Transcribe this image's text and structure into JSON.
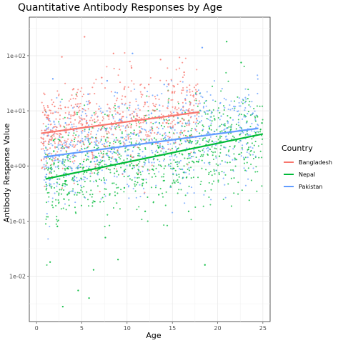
{
  "chart_data": {
    "type": "scatter",
    "title": "Quantitative Antibody Responses by Age",
    "xlabel": "Age",
    "ylabel": "Antibody Response Value",
    "xlim": [
      -0.8,
      25.8
    ],
    "ylim": [
      0.0015,
      500
    ],
    "y_scale": "log",
    "grid": true,
    "x_ticks": [
      {
        "value": 0,
        "label": "0"
      },
      {
        "value": 5,
        "label": "5"
      },
      {
        "value": 10,
        "label": "10"
      },
      {
        "value": 15,
        "label": "15"
      },
      {
        "value": 20,
        "label": "20"
      },
      {
        "value": 25,
        "label": "25"
      }
    ],
    "y_ticks": [
      {
        "value": 0.01,
        "label": "1e-02"
      },
      {
        "value": 0.1,
        "label": "1e-01"
      },
      {
        "value": 1,
        "label": "1e+00"
      },
      {
        "value": 10,
        "label": "1e+01"
      },
      {
        "value": 100,
        "label": "1e+02"
      }
    ],
    "legend": {
      "title": "Country",
      "placement": "right"
    },
    "series": [
      {
        "name": "Bangladesh",
        "color": "#F8766D",
        "x_range": [
          0.5,
          18
        ],
        "trend": {
          "x": [
            0.5,
            18
          ],
          "y": [
            3.9,
            9.5
          ]
        },
        "points": [
          [
            1.2,
            3.5
          ],
          [
            2.0,
            12.0
          ],
          [
            2.8,
            95.0
          ],
          [
            3.5,
            2.2
          ],
          [
            4.1,
            25.0
          ],
          [
            4.8,
            6.5
          ],
          [
            5.3,
            220.0
          ],
          [
            5.9,
            14.0
          ],
          [
            6.6,
            3.2
          ],
          [
            7.2,
            40.0
          ],
          [
            7.9,
            8.0
          ],
          [
            8.5,
            110.0
          ],
          [
            9.1,
            5.5
          ],
          [
            9.8,
            18.0
          ],
          [
            10.5,
            60.0
          ],
          [
            11.1,
            7.0
          ],
          [
            11.8,
            3.0
          ],
          [
            12.4,
            30.0
          ],
          [
            13.1,
            12.0
          ],
          [
            13.7,
            85.0
          ],
          [
            14.4,
            6.0
          ],
          [
            15.0,
            22.0
          ],
          [
            15.6,
            9.0
          ],
          [
            16.3,
            50.0
          ],
          [
            17.0,
            14.0
          ],
          [
            17.6,
            4.5
          ]
        ]
      },
      {
        "name": "Nepal",
        "color": "#00BA38",
        "x_range": [
          1,
          25
        ],
        "trend": {
          "x": [
            1,
            25
          ],
          "y": [
            0.58,
            3.8
          ]
        },
        "points": [
          [
            1.5,
            0.018
          ],
          [
            2.3,
            0.08
          ],
          [
            2.9,
            0.0028
          ],
          [
            3.4,
            0.3
          ],
          [
            4.0,
            0.6
          ],
          [
            4.6,
            0.0055
          ],
          [
            5.2,
            1.2
          ],
          [
            5.8,
            0.004
          ],
          [
            6.3,
            0.013
          ],
          [
            7.0,
            0.9
          ],
          [
            7.6,
            0.05
          ],
          [
            8.3,
            2.0
          ],
          [
            9.0,
            0.02
          ],
          [
            9.7,
            0.4
          ],
          [
            10.4,
            1.5
          ],
          [
            11.2,
            0.7
          ],
          [
            12.0,
            0.15
          ],
          [
            12.8,
            2.5
          ],
          [
            13.5,
            0.3
          ],
          [
            14.3,
            1.8
          ],
          [
            15.1,
            0.9
          ],
          [
            15.9,
            3.0
          ],
          [
            16.8,
            0.15
          ],
          [
            17.7,
            1.2
          ],
          [
            18.6,
            0.016
          ],
          [
            19.4,
            2.8
          ],
          [
            20.2,
            1.5
          ],
          [
            21.0,
            180.0
          ],
          [
            21.8,
            3.0
          ],
          [
            22.6,
            75.0
          ],
          [
            23.4,
            2.0
          ],
          [
            24.2,
            4.0
          ],
          [
            24.9,
            6.0
          ]
        ]
      },
      {
        "name": "Pakistan",
        "color": "#619CFF",
        "x_range": [
          0.8,
          24.5
        ],
        "trend": {
          "x": [
            0.8,
            24.5
          ],
          "y": [
            1.45,
            4.8
          ]
        },
        "points": [
          [
            1.1,
            0.7
          ],
          [
            1.8,
            38.0
          ],
          [
            2.5,
            1.5
          ],
          [
            3.2,
            6.0
          ],
          [
            3.9,
            0.9
          ],
          [
            4.5,
            12.0
          ],
          [
            5.1,
            2.8
          ],
          [
            5.7,
            20.0
          ],
          [
            6.4,
            1.2
          ],
          [
            7.1,
            4.5
          ],
          [
            7.8,
            35.0
          ],
          [
            8.5,
            1.8
          ],
          [
            9.2,
            7.0
          ],
          [
            9.9,
            2.2
          ],
          [
            10.6,
            110.0
          ],
          [
            11.3,
            3.5
          ],
          [
            12.0,
            1.5
          ],
          [
            12.7,
            9.0
          ],
          [
            13.4,
            2.6
          ],
          [
            14.1,
            30.0
          ],
          [
            14.8,
            5.0
          ],
          [
            15.5,
            2.0
          ],
          [
            16.2,
            12.0
          ],
          [
            16.9,
            3.2
          ],
          [
            17.6,
            20.0
          ],
          [
            18.3,
            140.0
          ],
          [
            19.0,
            4.0
          ],
          [
            19.7,
            2.5
          ],
          [
            20.4,
            8.0
          ],
          [
            21.1,
            3.0
          ],
          [
            21.8,
            12.0
          ],
          [
            22.5,
            5.0
          ],
          [
            23.2,
            2.5
          ],
          [
            23.9,
            9.0
          ]
        ]
      }
    ]
  }
}
